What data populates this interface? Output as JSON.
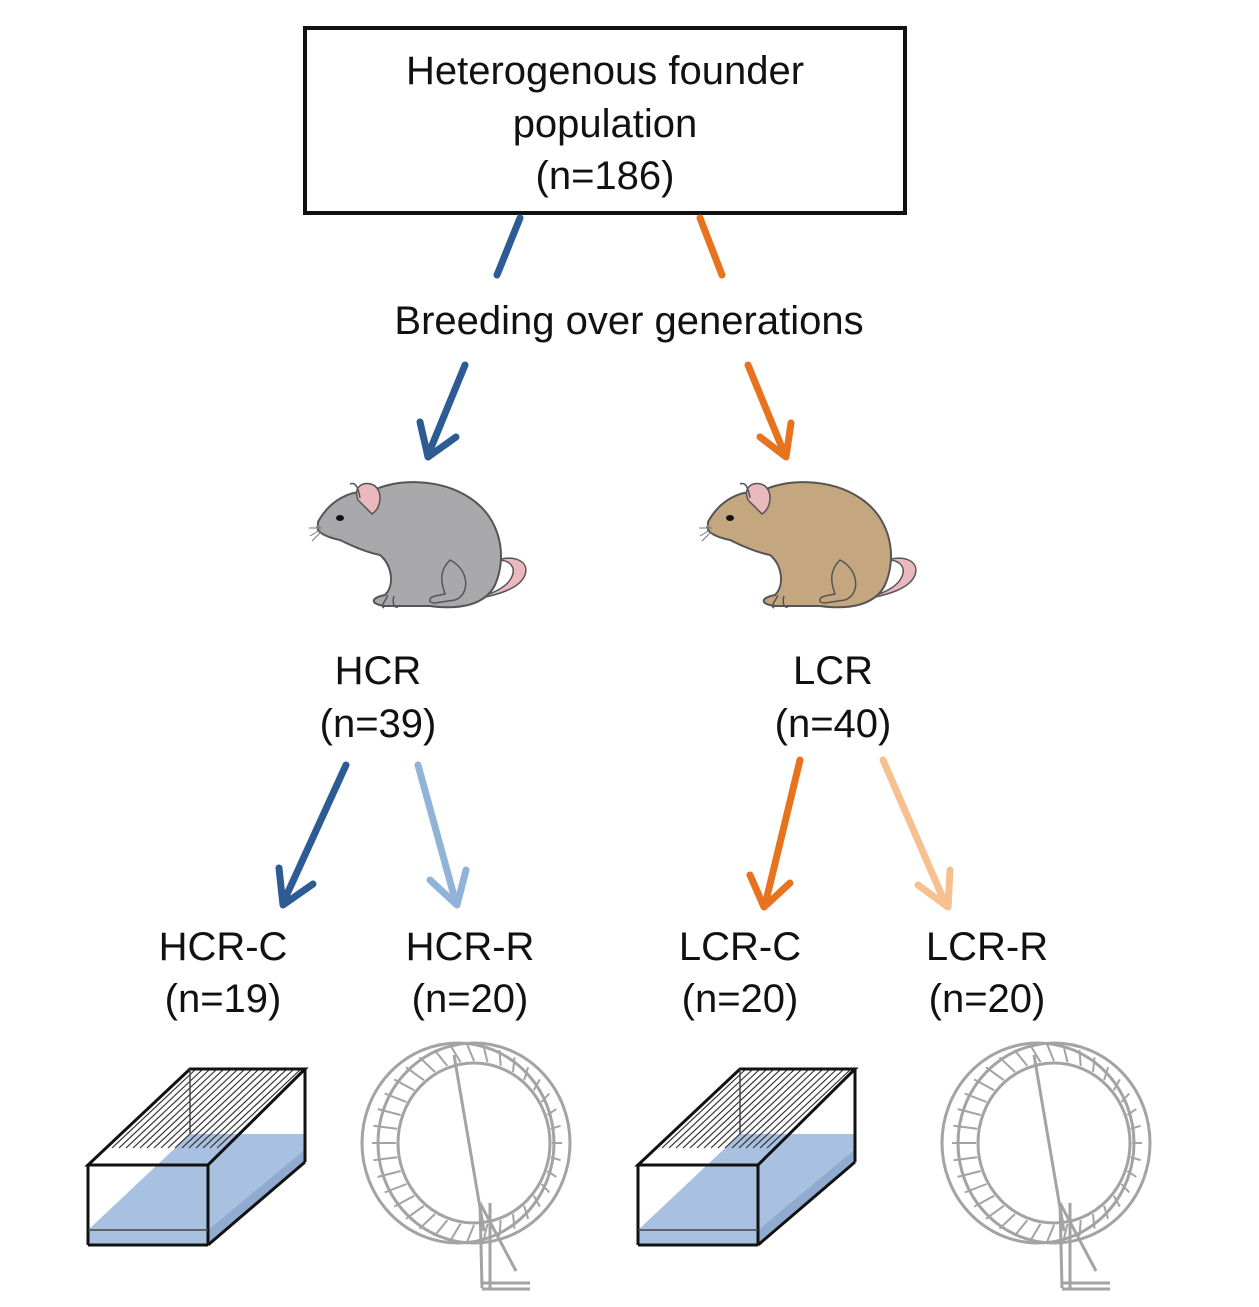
{
  "colors": {
    "hcr_dark": "#2c5c93",
    "hcr_light": "#92b3d8",
    "lcr_dark": "#e8731e",
    "lcr_light": "#f6c08f",
    "rat_grey": "#a9a9ab",
    "rat_tan": "#c4a77f",
    "rat_ear_tail": "#eab9bf",
    "cage_water": "#a8c1e0",
    "wheel_grey": "#a3a3a3"
  },
  "founder": {
    "line1": "Heterogenous founder",
    "line2": "population",
    "line3": "(n=186)"
  },
  "breeding_label": "Breeding over generations",
  "lines": [
    {
      "name": "HCR",
      "n": "(n=39)",
      "rat_color": "rat_grey"
    },
    {
      "name": "LCR",
      "n": "(n=40)",
      "rat_color": "rat_tan"
    }
  ],
  "groups": [
    {
      "name": "HCR-C",
      "n": "(n=19)",
      "icon": "cage-icon"
    },
    {
      "name": "HCR-R",
      "n": "(n=20)",
      "icon": "running-wheel-icon"
    },
    {
      "name": "LCR-C",
      "n": "(n=20)",
      "icon": "cage-icon"
    },
    {
      "name": "LCR-R",
      "n": "(n=20)",
      "icon": "running-wheel-icon"
    }
  ]
}
